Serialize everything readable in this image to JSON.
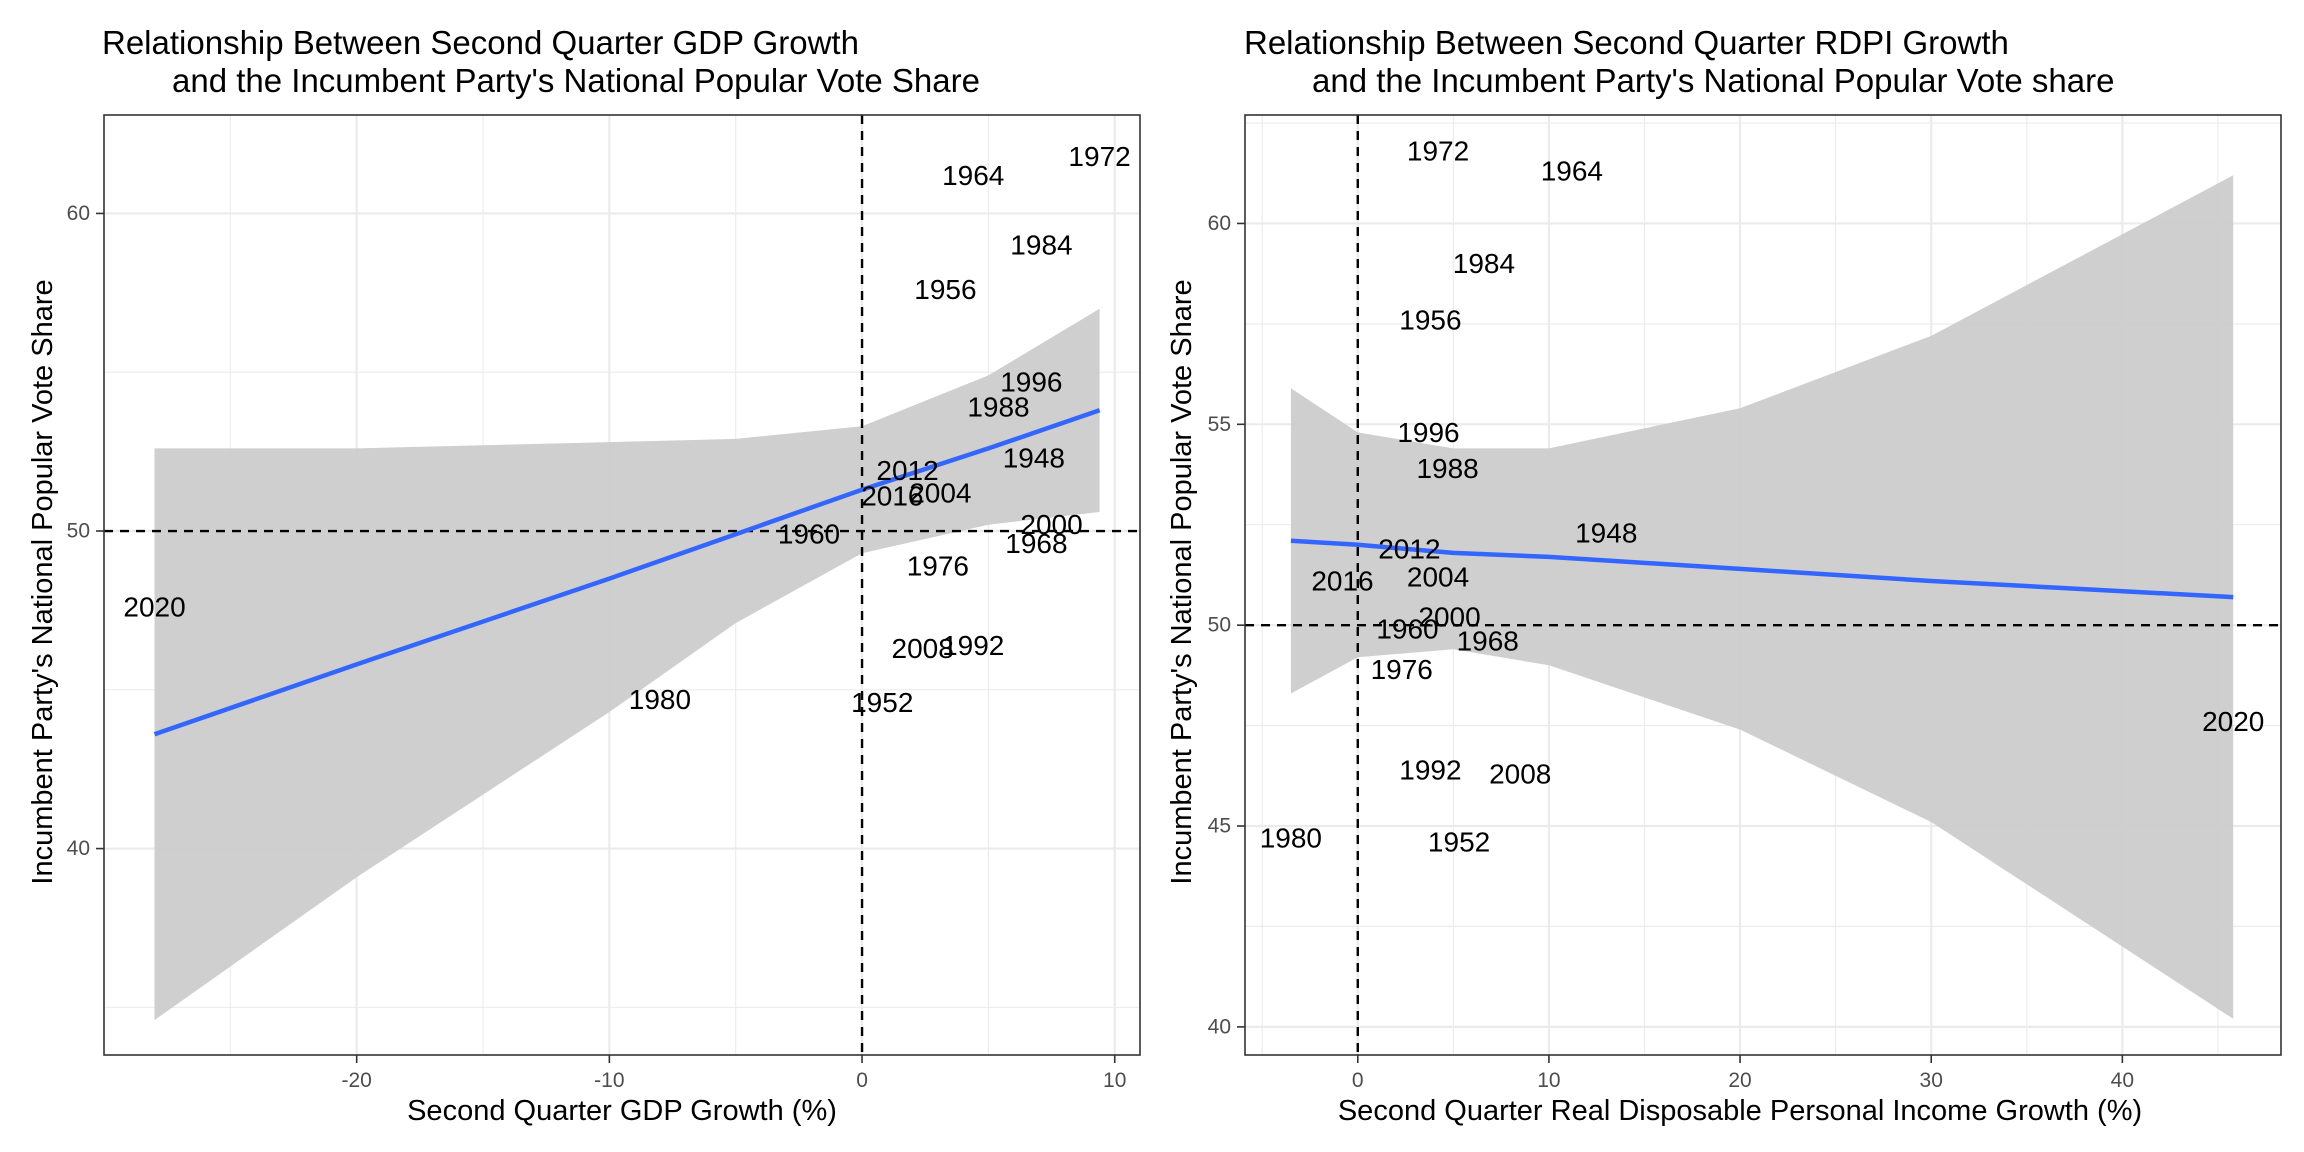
{
  "chart_data": [
    {
      "type": "scatter",
      "title_line1": "Relationship Between Second Quarter GDP Growth",
      "title_line2": "and the Incumbent Party's National Popular Vote Share",
      "xlabel": "Second Quarter GDP Growth (%)",
      "ylabel": "Incumbent Party's National Popular Vote Share",
      "xlim": [
        -30,
        11
      ],
      "ylim": [
        33.5,
        63.1
      ],
      "xticks": [
        -20,
        -10,
        0,
        10
      ],
      "yticks": [
        40,
        50,
        60
      ],
      "xtick_labels": [
        "-20",
        "-10",
        "0",
        "10"
      ],
      "ytick_labels": [
        "40",
        "50",
        "60"
      ],
      "grid": true,
      "reference_lines": {
        "x": 0,
        "y": 50
      },
      "points": [
        {
          "label": "1948",
          "x": 6.8,
          "y": 52.3
        },
        {
          "label": "1952",
          "x": 0.8,
          "y": 44.6
        },
        {
          "label": "1956",
          "x": 3.3,
          "y": 57.6
        },
        {
          "label": "1960",
          "x": -2.1,
          "y": 49.9
        },
        {
          "label": "1964",
          "x": 4.4,
          "y": 61.2
        },
        {
          "label": "1968",
          "x": 6.9,
          "y": 49.6
        },
        {
          "label": "1972",
          "x": 9.4,
          "y": 61.8
        },
        {
          "label": "1976",
          "x": 3.0,
          "y": 48.9
        },
        {
          "label": "1980",
          "x": -8.0,
          "y": 44.7
        },
        {
          "label": "1984",
          "x": 7.1,
          "y": 59.0
        },
        {
          "label": "1988",
          "x": 5.4,
          "y": 53.9
        },
        {
          "label": "1992",
          "x": 4.4,
          "y": 46.4
        },
        {
          "label": "1996",
          "x": 6.7,
          "y": 54.7
        },
        {
          "label": "2000",
          "x": 7.5,
          "y": 50.2
        },
        {
          "label": "2004",
          "x": 3.1,
          "y": 51.2
        },
        {
          "label": "2008",
          "x": 2.4,
          "y": 46.3
        },
        {
          "label": "2012",
          "x": 1.8,
          "y": 51.9
        },
        {
          "label": "2016",
          "x": 1.2,
          "y": 51.1
        },
        {
          "label": "2020",
          "x": -28.0,
          "y": 47.6
        }
      ],
      "fit": {
        "x": [
          -28.0,
          -20,
          -10,
          -5,
          0,
          5,
          9.4
        ],
        "y": [
          43.6,
          45.8,
          48.5,
          49.9,
          51.3,
          52.6,
          53.8
        ],
        "ci_lower": [
          34.6,
          39.1,
          44.3,
          47.1,
          49.3,
          50.2,
          50.6
        ],
        "ci_upper": [
          52.6,
          52.6,
          52.8,
          52.9,
          53.3,
          54.9,
          57.0
        ]
      },
      "colors": {
        "fit_line": "#3366ff",
        "ci_band": "#cccccc",
        "reference_line": "#000000",
        "grid": "#ebebeb",
        "panel_border": "#333333"
      }
    },
    {
      "type": "scatter",
      "title_line1": "Relationship Between Second Quarter RDPI Growth",
      "title_line2": "and the Incumbent Party's National Popular Vote share",
      "xlabel": "Second Quarter Real Disposable Personal Income Growth (%)",
      "ylabel": "Incumbent Party's National Popular Vote Share",
      "xlim": [
        -5.9,
        48.3
      ],
      "ylim": [
        39.3,
        62.7
      ],
      "xticks": [
        0,
        10,
        20,
        30,
        40
      ],
      "yticks": [
        40,
        45,
        50,
        55,
        60
      ],
      "xtick_labels": [
        "0",
        "10",
        "20",
        "30",
        "40"
      ],
      "ytick_labels": [
        "40",
        "45",
        "50",
        "55",
        "60"
      ],
      "grid": true,
      "reference_lines": {
        "x": 0,
        "y": 50
      },
      "points": [
        {
          "label": "1948",
          "x": 13.0,
          "y": 52.3
        },
        {
          "label": "1952",
          "x": 5.3,
          "y": 44.6
        },
        {
          "label": "1956",
          "x": 3.8,
          "y": 57.6
        },
        {
          "label": "1960",
          "x": 2.6,
          "y": 49.9
        },
        {
          "label": "1964",
          "x": 11.2,
          "y": 61.3
        },
        {
          "label": "1968",
          "x": 6.8,
          "y": 49.6
        },
        {
          "label": "1972",
          "x": 4.2,
          "y": 61.8
        },
        {
          "label": "1976",
          "x": 2.3,
          "y": 48.9
        },
        {
          "label": "1980",
          "x": -3.5,
          "y": 44.7
        },
        {
          "label": "1984",
          "x": 6.6,
          "y": 59.0
        },
        {
          "label": "1988",
          "x": 4.7,
          "y": 53.9
        },
        {
          "label": "1992",
          "x": 3.8,
          "y": 46.4
        },
        {
          "label": "1996",
          "x": 3.7,
          "y": 54.8
        },
        {
          "label": "2000",
          "x": 4.8,
          "y": 50.2
        },
        {
          "label": "2004",
          "x": 4.2,
          "y": 51.2
        },
        {
          "label": "2008",
          "x": 8.5,
          "y": 46.3
        },
        {
          "label": "2012",
          "x": 2.7,
          "y": 51.9
        },
        {
          "label": "2016",
          "x": -0.8,
          "y": 51.1
        },
        {
          "label": "2020",
          "x": 45.8,
          "y": 47.6
        }
      ],
      "fit": {
        "x": [
          -3.5,
          0,
          5,
          10,
          20,
          30,
          45.8
        ],
        "y": [
          52.1,
          52.0,
          51.8,
          51.7,
          51.4,
          51.1,
          50.7
        ],
        "ci_lower": [
          48.3,
          49.2,
          49.4,
          49.0,
          47.4,
          45.1,
          40.2
        ],
        "ci_upper": [
          55.9,
          54.8,
          54.4,
          54.4,
          55.4,
          57.2,
          61.2
        ]
      },
      "colors": {
        "fit_line": "#3366ff",
        "ci_band": "#cccccc",
        "reference_line": "#000000",
        "grid": "#ebebeb",
        "panel_border": "#333333"
      }
    }
  ]
}
